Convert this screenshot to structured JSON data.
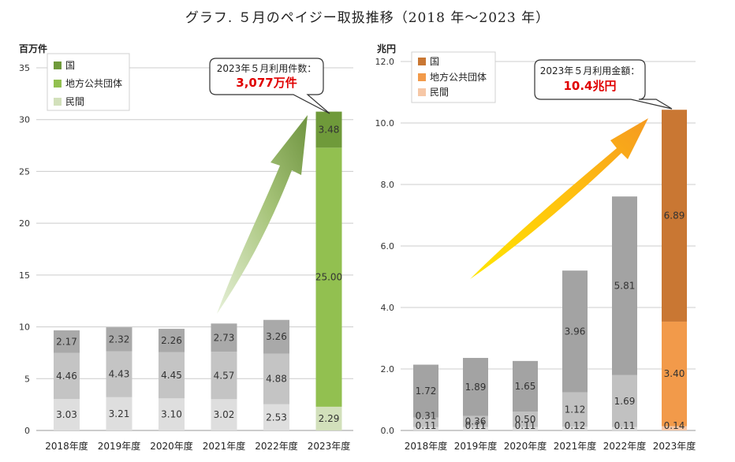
{
  "title": "グラフ. ５月のペイジー取扱推移（2018 年～2023 年）",
  "colors": {
    "left_legend": [
      "#6f9a3a",
      "#92c050",
      "#d2e0bb"
    ],
    "left_gray": [
      "#a9a9a9",
      "#c4c4c4",
      "#dedede"
    ],
    "right_legend": [
      "#c97733",
      "#f29a4a",
      "#f6c7a6"
    ],
    "right_gray": [
      "#a3a3a3",
      "#c1c1c1",
      "#dcdcdc"
    ],
    "grid": "#cccccc",
    "callout_red": "#e00000"
  },
  "chart_data": [
    {
      "type": "bar",
      "stacked": true,
      "unit": "百万件",
      "ylim": [
        0,
        35
      ],
      "yticks": [
        "0",
        "5",
        "10",
        "15",
        "20",
        "25",
        "30",
        "35"
      ],
      "categories": [
        "2018年度",
        "2019年度",
        "2020年度",
        "2021年度",
        "2022年度",
        "2023年度"
      ],
      "legend_position": "top-left",
      "series": [
        {
          "name": "民間",
          "values": [
            3.03,
            3.21,
            3.1,
            3.02,
            2.53,
            2.29
          ],
          "labels": [
            "3.03",
            "3.21",
            "3.10",
            "3.02",
            "2.53",
            "2.29"
          ]
        },
        {
          "name": "地方公共団体",
          "values": [
            4.46,
            4.43,
            4.45,
            4.57,
            4.88,
            25.0
          ],
          "labels": [
            "4.46",
            "4.43",
            "4.45",
            "4.57",
            "4.88",
            "25.00"
          ]
        },
        {
          "name": "国",
          "values": [
            2.17,
            2.32,
            2.26,
            2.73,
            3.26,
            3.48
          ],
          "labels": [
            "2.17",
            "2.32",
            "2.26",
            "2.73",
            "3.26",
            "3.48"
          ]
        }
      ],
      "legend": [
        "国",
        "地方公共団体",
        "民間"
      ],
      "callout": {
        "line1": "2023年５月利用件数：",
        "line2": "3,077万件"
      }
    },
    {
      "type": "bar",
      "stacked": true,
      "unit": "兆円",
      "ylim": [
        0,
        12
      ],
      "yticks": [
        "0.0",
        "2.0",
        "4.0",
        "6.0",
        "8.0",
        "10.0",
        "12.0"
      ],
      "categories": [
        "2018年度",
        "2019年度",
        "2020年度",
        "2021年度",
        "2022年度",
        "2023年度"
      ],
      "legend_position": "top-left",
      "series": [
        {
          "name": "民間",
          "values": [
            0.11,
            0.11,
            0.11,
            0.12,
            0.11,
            0.14
          ],
          "labels": [
            "0.11",
            "0.11",
            "0.11",
            "0.12",
            "0.11",
            "0.14"
          ]
        },
        {
          "name": "地方公共団体",
          "values": [
            0.31,
            0.36,
            0.5,
            1.12,
            1.69,
            3.4
          ],
          "labels": [
            "0.31",
            "0.36",
            "0.50",
            "1.12",
            "1.69",
            "3.40"
          ]
        },
        {
          "name": "国",
          "values": [
            1.72,
            1.89,
            1.65,
            3.96,
            5.81,
            6.89
          ],
          "labels": [
            "1.72",
            "1.89",
            "1.65",
            "3.96",
            "5.81",
            "6.89"
          ]
        }
      ],
      "legend": [
        "国",
        "地方公共団体",
        "民間"
      ],
      "callout": {
        "line1": "2023年５月利用金額：",
        "line2": "10.4兆円"
      }
    }
  ]
}
